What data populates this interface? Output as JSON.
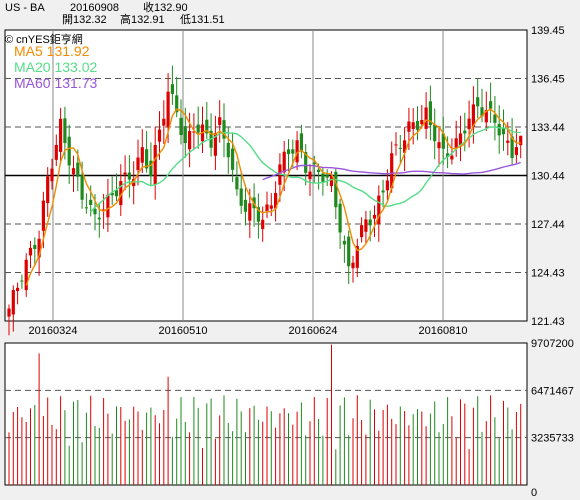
{
  "header": {
    "symbol": "US - BA",
    "date": "20160908",
    "close_label": "收132.90",
    "open_label": "開132.32",
    "high_label": "高132.91",
    "low_label": "低131.51"
  },
  "legend": {
    "source": "© cnYES鉅亨網",
    "ma5": "MA5 131.92",
    "ma20": "MA20 133.02",
    "ma60": "MA60 131.73"
  },
  "colors": {
    "up": "#dd0000",
    "down": "#1e8a1e",
    "ma5": "#f08c00",
    "ma20": "#55dd88",
    "ma60": "#9955dd",
    "background": "#ffffff",
    "grid": "#333333"
  },
  "chart_data": [
    {
      "type": "candlestick",
      "title": "",
      "x_ticks": [
        "20160324",
        "20160510",
        "20160624",
        "20160810"
      ],
      "y_ticks": [
        "139.45",
        "136.45",
        "133.44",
        "130.44",
        "127.44",
        "124.43",
        "121.43"
      ],
      "ylim": [
        121.43,
        139.45
      ],
      "reference_line": 130.44,
      "series": [
        {
          "name": "MA5",
          "last": 131.92
        },
        {
          "name": "MA20",
          "last": 133.02
        },
        {
          "name": "MA60",
          "last": 131.73
        }
      ],
      "last_candle": {
        "date": "20160908",
        "open": 132.32,
        "high": 132.91,
        "low": 131.51,
        "close": 132.9
      }
    },
    {
      "type": "bar",
      "title": "",
      "y_ticks": [
        "9707200",
        "6471467",
        "3235733",
        "0"
      ],
      "ylim": [
        0,
        9707200
      ]
    }
  ]
}
